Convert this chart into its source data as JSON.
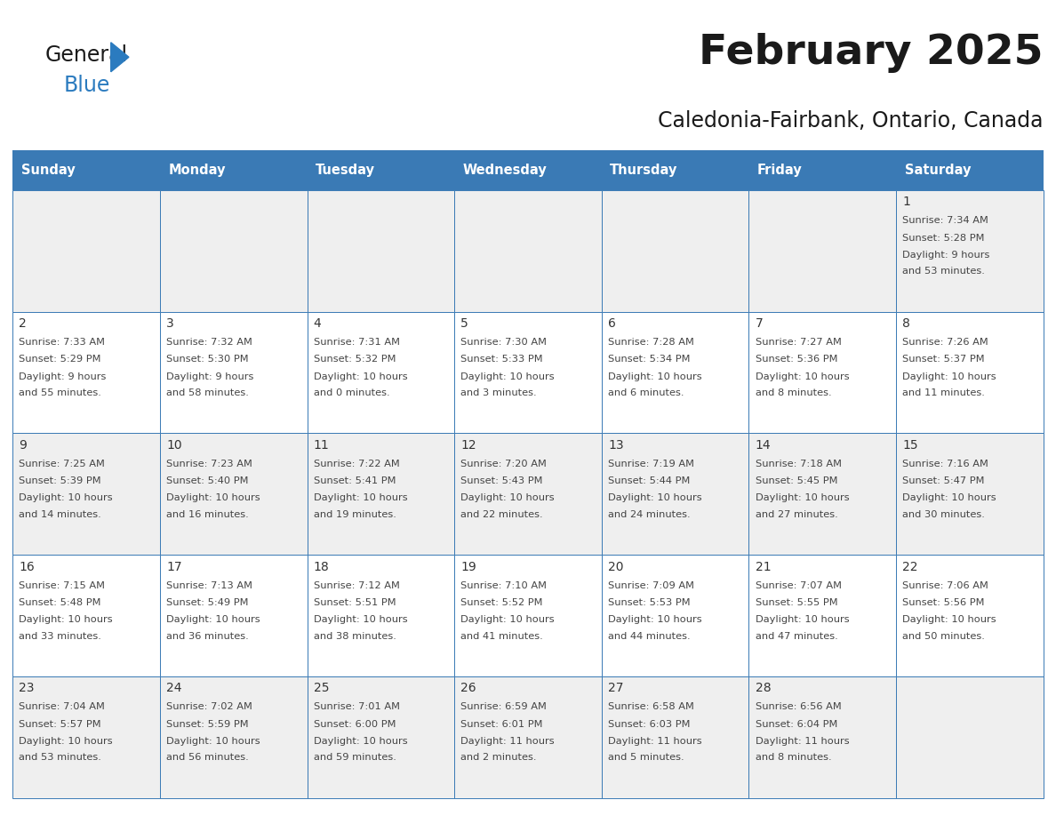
{
  "title": "February 2025",
  "subtitle": "Caledonia-Fairbank, Ontario, Canada",
  "header_color": "#3a7ab5",
  "header_text_color": "#ffffff",
  "day_names": [
    "Sunday",
    "Monday",
    "Tuesday",
    "Wednesday",
    "Thursday",
    "Friday",
    "Saturday"
  ],
  "cell_bg_light": "#efefef",
  "cell_bg_white": "#ffffff",
  "border_color": "#3a7ab5",
  "text_color": "#444444",
  "day_number_color": "#333333",
  "title_color": "#1a1a1a",
  "calendar": [
    [
      null,
      null,
      null,
      null,
      null,
      null,
      {
        "day": 1,
        "sunrise": "7:34 AM",
        "sunset": "5:28 PM",
        "daylight": "9 hours",
        "daylight2": "and 53 minutes."
      }
    ],
    [
      {
        "day": 2,
        "sunrise": "7:33 AM",
        "sunset": "5:29 PM",
        "daylight": "9 hours",
        "daylight2": "and 55 minutes."
      },
      {
        "day": 3,
        "sunrise": "7:32 AM",
        "sunset": "5:30 PM",
        "daylight": "9 hours",
        "daylight2": "and 58 minutes."
      },
      {
        "day": 4,
        "sunrise": "7:31 AM",
        "sunset": "5:32 PM",
        "daylight": "10 hours",
        "daylight2": "and 0 minutes."
      },
      {
        "day": 5,
        "sunrise": "7:30 AM",
        "sunset": "5:33 PM",
        "daylight": "10 hours",
        "daylight2": "and 3 minutes."
      },
      {
        "day": 6,
        "sunrise": "7:28 AM",
        "sunset": "5:34 PM",
        "daylight": "10 hours",
        "daylight2": "and 6 minutes."
      },
      {
        "day": 7,
        "sunrise": "7:27 AM",
        "sunset": "5:36 PM",
        "daylight": "10 hours",
        "daylight2": "and 8 minutes."
      },
      {
        "day": 8,
        "sunrise": "7:26 AM",
        "sunset": "5:37 PM",
        "daylight": "10 hours",
        "daylight2": "and 11 minutes."
      }
    ],
    [
      {
        "day": 9,
        "sunrise": "7:25 AM",
        "sunset": "5:39 PM",
        "daylight": "10 hours",
        "daylight2": "and 14 minutes."
      },
      {
        "day": 10,
        "sunrise": "7:23 AM",
        "sunset": "5:40 PM",
        "daylight": "10 hours",
        "daylight2": "and 16 minutes."
      },
      {
        "day": 11,
        "sunrise": "7:22 AM",
        "sunset": "5:41 PM",
        "daylight": "10 hours",
        "daylight2": "and 19 minutes."
      },
      {
        "day": 12,
        "sunrise": "7:20 AM",
        "sunset": "5:43 PM",
        "daylight": "10 hours",
        "daylight2": "and 22 minutes."
      },
      {
        "day": 13,
        "sunrise": "7:19 AM",
        "sunset": "5:44 PM",
        "daylight": "10 hours",
        "daylight2": "and 24 minutes."
      },
      {
        "day": 14,
        "sunrise": "7:18 AM",
        "sunset": "5:45 PM",
        "daylight": "10 hours",
        "daylight2": "and 27 minutes."
      },
      {
        "day": 15,
        "sunrise": "7:16 AM",
        "sunset": "5:47 PM",
        "daylight": "10 hours",
        "daylight2": "and 30 minutes."
      }
    ],
    [
      {
        "day": 16,
        "sunrise": "7:15 AM",
        "sunset": "5:48 PM",
        "daylight": "10 hours",
        "daylight2": "and 33 minutes."
      },
      {
        "day": 17,
        "sunrise": "7:13 AM",
        "sunset": "5:49 PM",
        "daylight": "10 hours",
        "daylight2": "and 36 minutes."
      },
      {
        "day": 18,
        "sunrise": "7:12 AM",
        "sunset": "5:51 PM",
        "daylight": "10 hours",
        "daylight2": "and 38 minutes."
      },
      {
        "day": 19,
        "sunrise": "7:10 AM",
        "sunset": "5:52 PM",
        "daylight": "10 hours",
        "daylight2": "and 41 minutes."
      },
      {
        "day": 20,
        "sunrise": "7:09 AM",
        "sunset": "5:53 PM",
        "daylight": "10 hours",
        "daylight2": "and 44 minutes."
      },
      {
        "day": 21,
        "sunrise": "7:07 AM",
        "sunset": "5:55 PM",
        "daylight": "10 hours",
        "daylight2": "and 47 minutes."
      },
      {
        "day": 22,
        "sunrise": "7:06 AM",
        "sunset": "5:56 PM",
        "daylight": "10 hours",
        "daylight2": "and 50 minutes."
      }
    ],
    [
      {
        "day": 23,
        "sunrise": "7:04 AM",
        "sunset": "5:57 PM",
        "daylight": "10 hours",
        "daylight2": "and 53 minutes."
      },
      {
        "day": 24,
        "sunrise": "7:02 AM",
        "sunset": "5:59 PM",
        "daylight": "10 hours",
        "daylight2": "and 56 minutes."
      },
      {
        "day": 25,
        "sunrise": "7:01 AM",
        "sunset": "6:00 PM",
        "daylight": "10 hours",
        "daylight2": "and 59 minutes."
      },
      {
        "day": 26,
        "sunrise": "6:59 AM",
        "sunset": "6:01 PM",
        "daylight": "11 hours",
        "daylight2": "and 2 minutes."
      },
      {
        "day": 27,
        "sunrise": "6:58 AM",
        "sunset": "6:03 PM",
        "daylight": "11 hours",
        "daylight2": "and 5 minutes."
      },
      {
        "day": 28,
        "sunrise": "6:56 AM",
        "sunset": "6:04 PM",
        "daylight": "11 hours",
        "daylight2": "and 8 minutes."
      },
      null
    ]
  ]
}
